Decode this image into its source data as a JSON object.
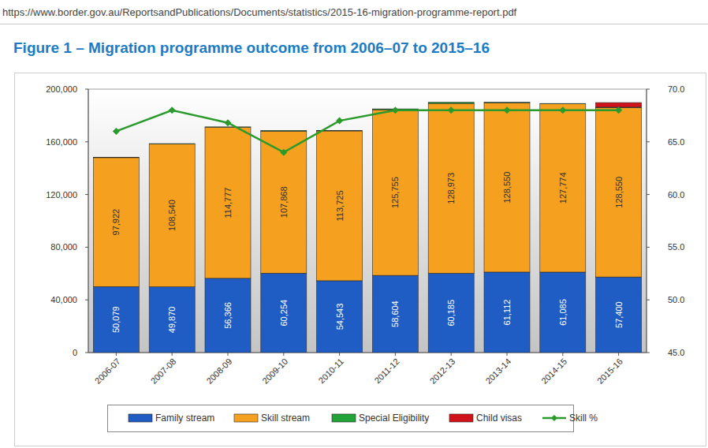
{
  "url": "https://www.border.gov.au/ReportsandPublications/Documents/statistics/2015-16-migration-programme-report.pdf",
  "chart_data": {
    "type": "bar",
    "title": "Figure 1 – Migration programme outcome from 2006–07 to 2015–16",
    "categories": [
      "2006-07",
      "2007-08",
      "2008-09",
      "2009-10",
      "2010-11",
      "2011-12",
      "2012-13",
      "2013-14",
      "2014-15",
      "2015-16"
    ],
    "stacked": true,
    "data_labels": true,
    "legend": "bottom",
    "grid": false,
    "ylim": [
      0,
      200000
    ],
    "yticks": [
      0,
      {
        "value": 40000,
        "label": "40,000"
      },
      {
        "value": 80000,
        "label": "80,000"
      },
      {
        "value": 120000,
        "label": "120,000"
      },
      {
        "value": 160000,
        "label": "160,000"
      },
      {
        "value": 200000,
        "label": "200,000"
      }
    ],
    "y2lim": [
      45,
      70
    ],
    "y2ticks": [
      {
        "value": 45,
        "label": "45.0"
      },
      {
        "value": 50,
        "label": "50.0"
      },
      {
        "value": 55,
        "label": "55.0"
      },
      {
        "value": 60,
        "label": "60.0"
      },
      {
        "value": 65,
        "label": "65.0"
      },
      {
        "value": 70,
        "label": "70.0"
      }
    ],
    "series": [
      {
        "name": "Family stream",
        "type": "bar",
        "color": "#1f5cc4",
        "values": [
          50079,
          49870,
          56366,
          60254,
          54543,
          58604,
          60185,
          61112,
          61085,
          57400
        ],
        "value_labels": [
          "50,079",
          "49,870",
          "56,366",
          "60,254",
          "54,543",
          "58,604",
          "60,185",
          "61,112",
          "61,085",
          "57,400"
        ]
      },
      {
        "name": "Skill stream",
        "type": "bar",
        "color": "#f5a01e",
        "values": [
          97922,
          108540,
          114777,
          107868,
          113725,
          125755,
          128973,
          128550,
          127774,
          128550
        ],
        "value_labels": [
          "97,922",
          "108,540",
          "114,777",
          "107,868",
          "113,725",
          "125,755",
          "128,973",
          "128,550",
          "127,774",
          "128,550"
        ]
      },
      {
        "name": "Special Eligibility",
        "type": "bar",
        "color": "#22a33a",
        "values": [
          200,
          220,
          175,
          500,
          420,
          640,
          840,
          340,
          240,
          308
        ]
      },
      {
        "name": "Child visas",
        "type": "bar",
        "color": "#d0121b",
        "values": [
          null,
          null,
          null,
          null,
          null,
          null,
          null,
          null,
          null,
          3512
        ]
      },
      {
        "name": "Skill %",
        "type": "line",
        "axis": "y2",
        "color": "#2a9a2a",
        "marker": "diamond",
        "values": [
          66.0,
          68.0,
          66.8,
          64.0,
          67.0,
          68.0,
          68.0,
          68.0,
          68.0,
          68.0
        ]
      }
    ]
  }
}
